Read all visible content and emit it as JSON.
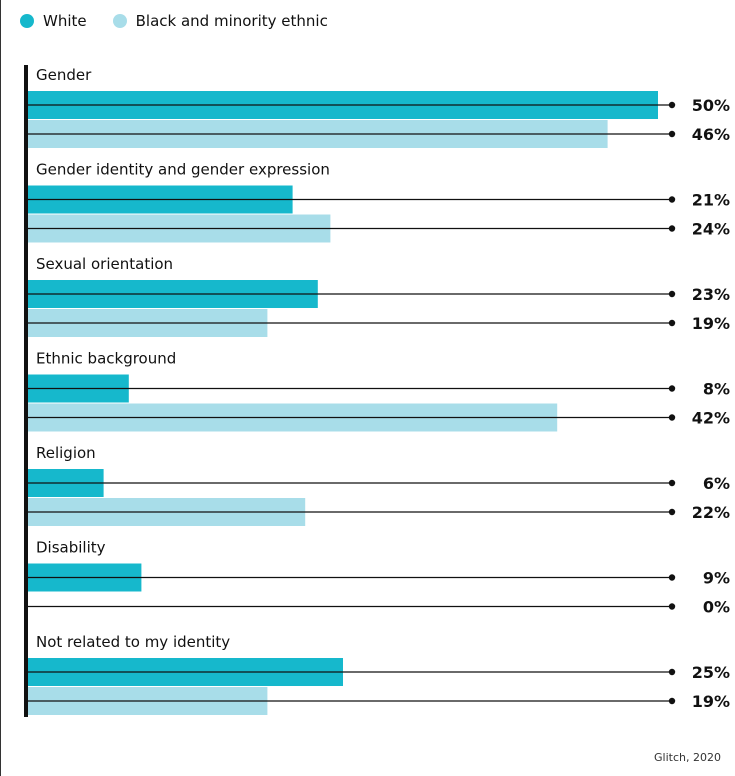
{
  "legend": {
    "white_label": "White",
    "bme_label": "Black and minority ethnic"
  },
  "colors": {
    "white": "#16b8cc",
    "bme": "#a8dde9",
    "axis": "#111111"
  },
  "source": "Glitch, 2020",
  "chart_data": {
    "type": "bar",
    "orientation": "horizontal",
    "value_format": "percent",
    "xlim": [
      0,
      50
    ],
    "categories": [
      "Gender",
      "Gender identity and gender expression",
      "Sexual orientation",
      "Ethnic background",
      "Religion",
      "Disability",
      "Not related to my identity"
    ],
    "series": [
      {
        "name": "White",
        "values": [
          50,
          21,
          23,
          8,
          6,
          9,
          25
        ]
      },
      {
        "name": "Black and minority ethnic",
        "values": [
          46,
          24,
          19,
          42,
          22,
          0,
          19
        ]
      }
    ]
  }
}
